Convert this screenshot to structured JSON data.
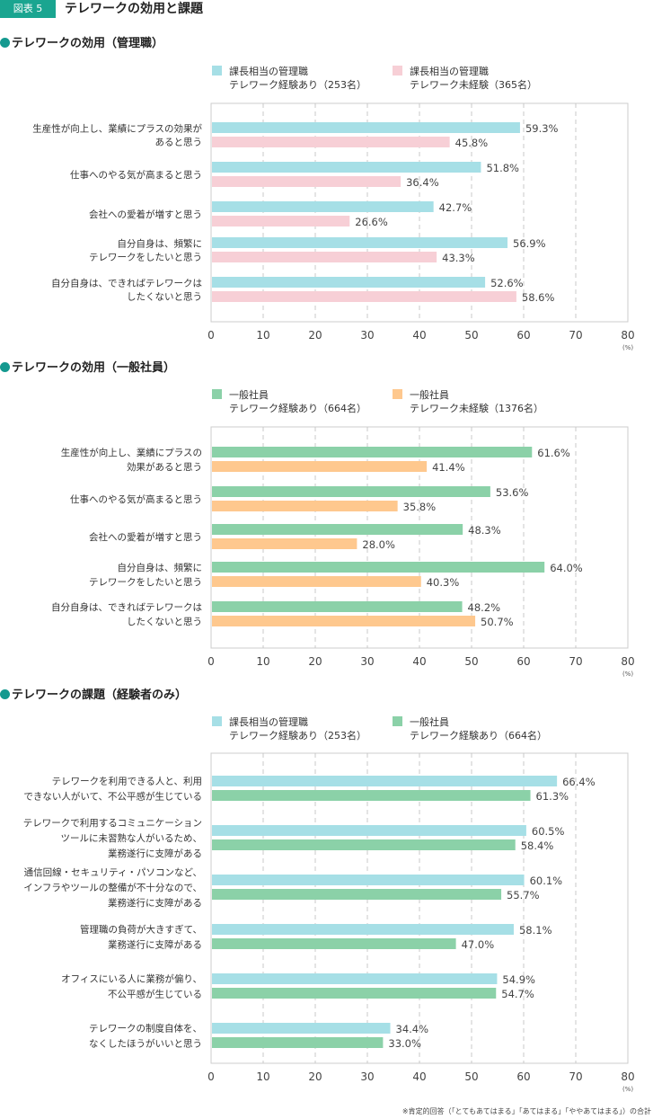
{
  "figure": {
    "badge": "図表 5",
    "title": "テレワークの効用と課題",
    "footnote": "※肯定的回答（「とてもあてはまる」「あてはまる」「ややあてはまる」）の合計"
  },
  "colors": {
    "manager_exp": "#a6dfe6",
    "manager_noexp": "#f7cfd6",
    "staff_exp": "#8bd1a8",
    "staff_noexp": "#fec88e",
    "badge": "#1aa590",
    "bullet": "#14998f"
  },
  "chart_data": [
    {
      "type": "bar",
      "orientation": "horizontal",
      "title": "テレワークの効用（管理職）",
      "categories": [
        [
          "生産性が向上し、業績にプラスの効果が",
          "あると思う"
        ],
        [
          "仕事へのやる気が高まると思う"
        ],
        [
          "会社への愛着が増すと思う"
        ],
        [
          "自分自身は、頻繁に",
          "テレワークをしたいと思う"
        ],
        [
          "自分自身は、できればテレワークは",
          "したくないと思う"
        ]
      ],
      "series": [
        {
          "name": [
            "課長相当の管理職",
            "テレワーク経験あり（253名）"
          ],
          "color": "#a6dfe6",
          "values": [
            59.3,
            51.8,
            42.7,
            56.9,
            52.6
          ]
        },
        {
          "name": [
            "課長相当の管理職",
            "テレワーク未経験（365名）"
          ],
          "color": "#f7cfd6",
          "values": [
            45.8,
            36.4,
            26.6,
            43.3,
            58.6
          ]
        }
      ],
      "xlim": [
        0,
        80
      ],
      "xticks": [
        0,
        10,
        20,
        30,
        40,
        50,
        60,
        70,
        80
      ],
      "xunit": "(%)",
      "grid": true,
      "legend": "top"
    },
    {
      "type": "bar",
      "orientation": "horizontal",
      "title": "テレワークの効用（一般社員）",
      "categories": [
        [
          "生産性が向上し、業績にプラスの",
          "効果があると思う"
        ],
        [
          "仕事へのやる気が高まると思う"
        ],
        [
          "会社への愛着が増すと思う"
        ],
        [
          "自分自身は、頻繁に",
          "テレワークをしたいと思う"
        ],
        [
          "自分自身は、できればテレワークは",
          "したくないと思う"
        ]
      ],
      "series": [
        {
          "name": [
            "一般社員",
            "テレワーク経験あり（664名）"
          ],
          "color": "#8bd1a8",
          "values": [
            61.6,
            53.6,
            48.3,
            64.0,
            48.2
          ]
        },
        {
          "name": [
            "一般社員",
            "テレワーク未経験（1376名）"
          ],
          "color": "#fec88e",
          "values": [
            41.4,
            35.8,
            28.0,
            40.3,
            50.7
          ]
        }
      ],
      "xlim": [
        0,
        80
      ],
      "xticks": [
        0,
        10,
        20,
        30,
        40,
        50,
        60,
        70,
        80
      ],
      "xunit": "(%)",
      "grid": true,
      "legend": "top"
    },
    {
      "type": "bar",
      "orientation": "horizontal",
      "title": "テレワークの課題（経験者のみ）",
      "categories": [
        [
          "テレワークを利用できる人と、利用",
          "できない人がいて、不公平感が生じている"
        ],
        [
          "テレワークで利用するコミュニケーション",
          "ツールに未習熟な人がいるため、",
          "業務遂行に支障がある"
        ],
        [
          "通信回線・セキュリティ・パソコンなど、",
          "インフラやツールの整備が不十分なので、",
          "業務遂行に支障がある"
        ],
        [
          "管理職の負荷が大きすぎて、",
          "業務遂行に支障がある"
        ],
        [
          "オフィスにいる人に業務が偏り、",
          "不公平感が生じている"
        ],
        [
          "テレワークの制度自体を、",
          "なくしたほうがいいと思う"
        ]
      ],
      "series": [
        {
          "name": [
            "課長相当の管理職",
            "テレワーク経験あり（253名）"
          ],
          "color": "#a6dfe6",
          "values": [
            66.4,
            60.5,
            60.1,
            58.1,
            54.9,
            34.4
          ]
        },
        {
          "name": [
            "一般社員",
            "テレワーク経験あり（664名）"
          ],
          "color": "#8bd1a8",
          "values": [
            61.3,
            58.4,
            55.7,
            47.0,
            54.7,
            33.0
          ]
        }
      ],
      "xlim": [
        0,
        80
      ],
      "xticks": [
        0,
        10,
        20,
        30,
        40,
        50,
        60,
        70,
        80
      ],
      "xunit": "(%)",
      "grid": true,
      "legend": "top"
    }
  ]
}
